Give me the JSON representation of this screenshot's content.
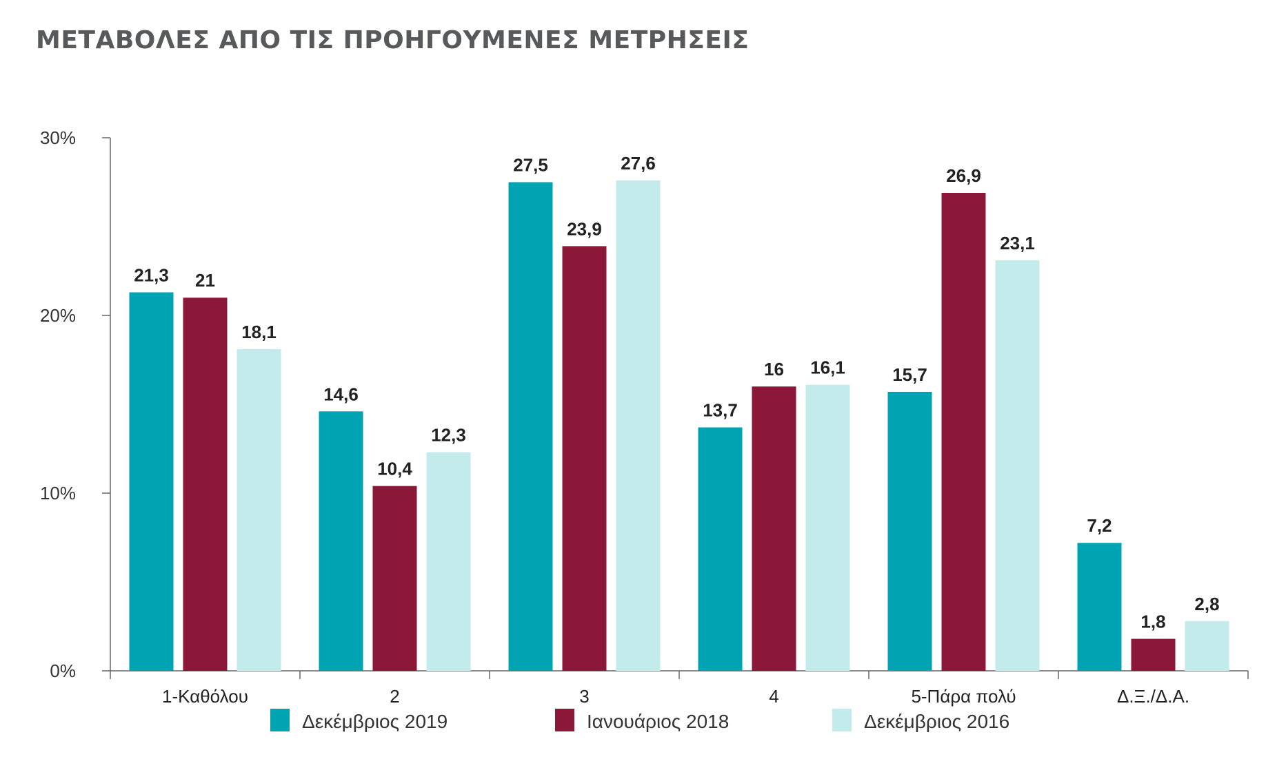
{
  "chart_data": {
    "type": "bar",
    "title": "ΜΕΤΑΒΟΛΕΣ ΑΠΟ ΤΙΣ ΠΡΟΗΓΟΥΜΕΝΕΣ ΜΕΤΡΗΣΕΙΣ",
    "categories": [
      "1-Καθόλου",
      "2",
      "3",
      "4",
      "5-Πάρα πολύ",
      "Δ.Ξ./Δ.Α."
    ],
    "series": [
      {
        "name": "Δεκέμβριος 2019",
        "color": "#00a3b1",
        "values": [
          21.3,
          14.6,
          27.5,
          13.7,
          15.7,
          7.2
        ],
        "labels": [
          "21,3",
          "14,6",
          "27,5",
          "13,7",
          "15,7",
          "7,2"
        ]
      },
      {
        "name": "Ιανουάριος 2018",
        "color": "#8c1839",
        "values": [
          21,
          10.4,
          23.9,
          16,
          26.9,
          1.8
        ],
        "labels": [
          "21",
          "10,4",
          "23,9",
          "16",
          "26,9",
          "1,8"
        ]
      },
      {
        "name": "Δεκέμβριος 2016",
        "color": "#c4ebeb",
        "values": [
          18.1,
          12.3,
          27.6,
          16.1,
          23.1,
          2.8
        ],
        "labels": [
          "18,1",
          "12,3",
          "27,6",
          "16,1",
          "23,1",
          "2,8"
        ]
      }
    ],
    "ylim": [
      0,
      30
    ],
    "yticks": [
      0,
      10,
      20,
      30
    ],
    "ytick_labels": [
      "0%",
      "10%",
      "20%",
      "30%"
    ],
    "grid": false,
    "legend_position": "bottom"
  }
}
